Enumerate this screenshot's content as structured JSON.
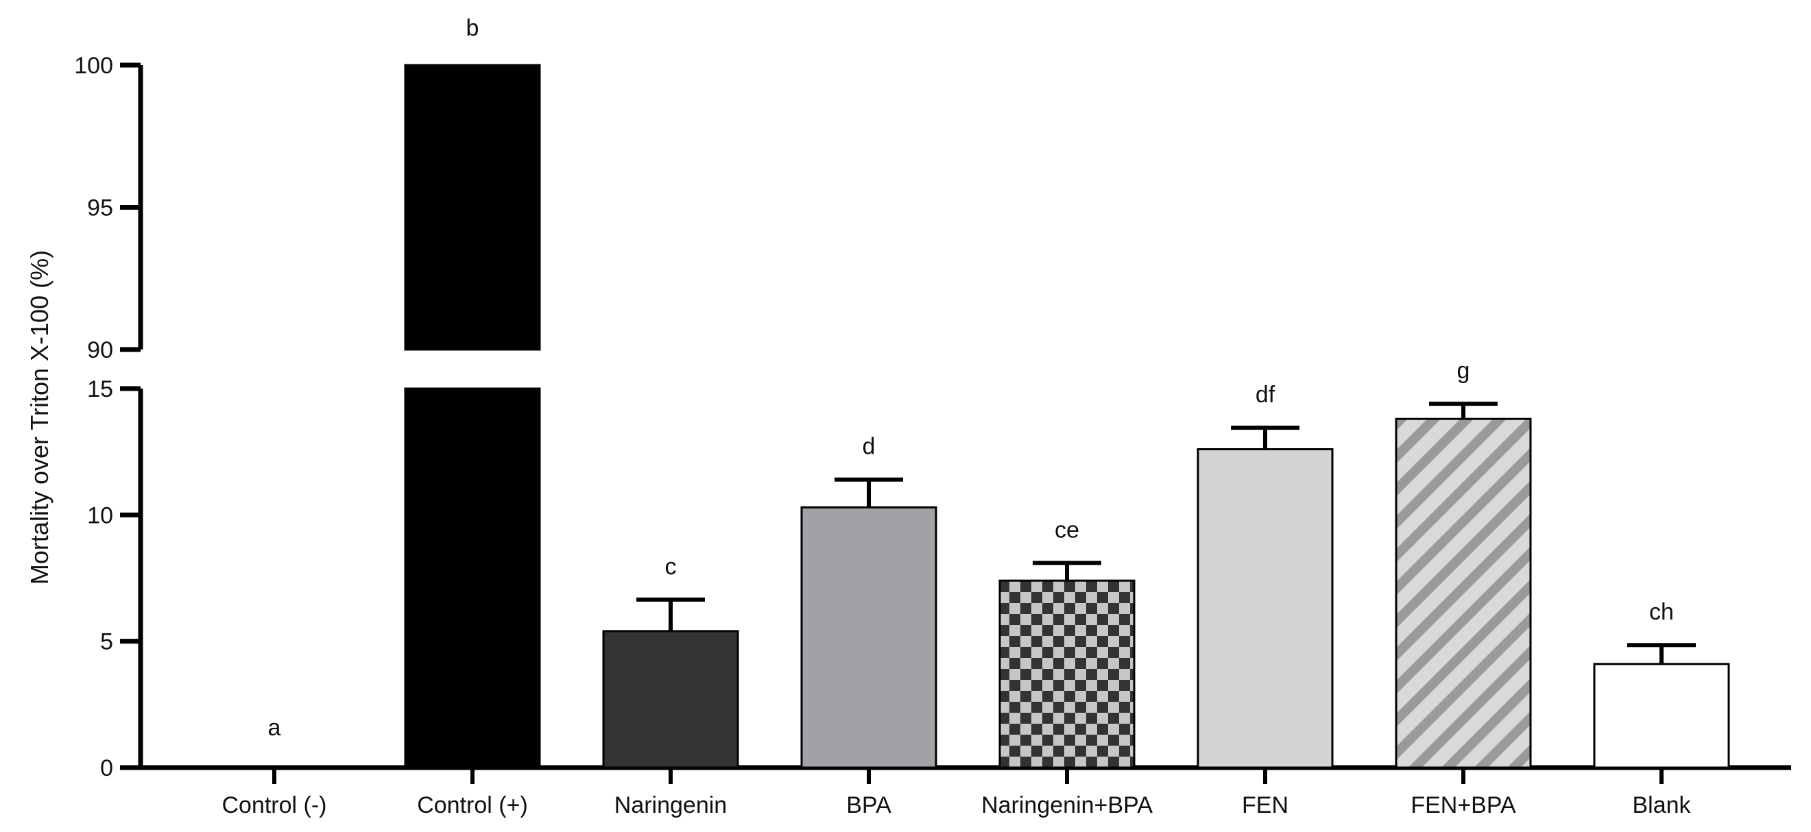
{
  "chart_data": {
    "type": "bar",
    "title": "",
    "xlabel": "",
    "ylabel": "Mortality over Triton X-100 (%)",
    "y_axis_break": {
      "lower_segment": [
        0,
        15
      ],
      "upper_segment": [
        90,
        100
      ]
    },
    "yticks_lower": [
      0,
      5,
      10,
      15
    ],
    "yticks_upper": [
      90,
      95,
      100
    ],
    "categories": [
      "Control (-)",
      "Control (+)",
      "Naringenin",
      "BPA",
      "Naringenin+BPA",
      "FEN",
      "FEN+BPA",
      "Blank"
    ],
    "values": [
      0,
      100,
      5.4,
      10.3,
      7.4,
      12.6,
      13.8,
      4.1
    ],
    "errors": [
      0,
      0,
      1.25,
      1.1,
      0.7,
      0.85,
      0.6,
      0.75
    ],
    "significance_labels": [
      "a",
      "b",
      "c",
      "d",
      "ce",
      "df",
      "g",
      "ch"
    ],
    "bar_styles": [
      {
        "fill": "#ffffff",
        "pattern": "none"
      },
      {
        "fill": "#000000",
        "pattern": "none"
      },
      {
        "fill": "#333333",
        "pattern": "none"
      },
      {
        "fill": "#a2a1a6",
        "pattern": "none"
      },
      {
        "fill": "#333333",
        "pattern": "checker"
      },
      {
        "fill": "#d4d4d4",
        "pattern": "none"
      },
      {
        "fill": "#c8c8c8",
        "pattern": "diagonal"
      },
      {
        "fill": "#ffffff",
        "pattern": "none"
      }
    ],
    "grid": false,
    "legend": "none"
  }
}
